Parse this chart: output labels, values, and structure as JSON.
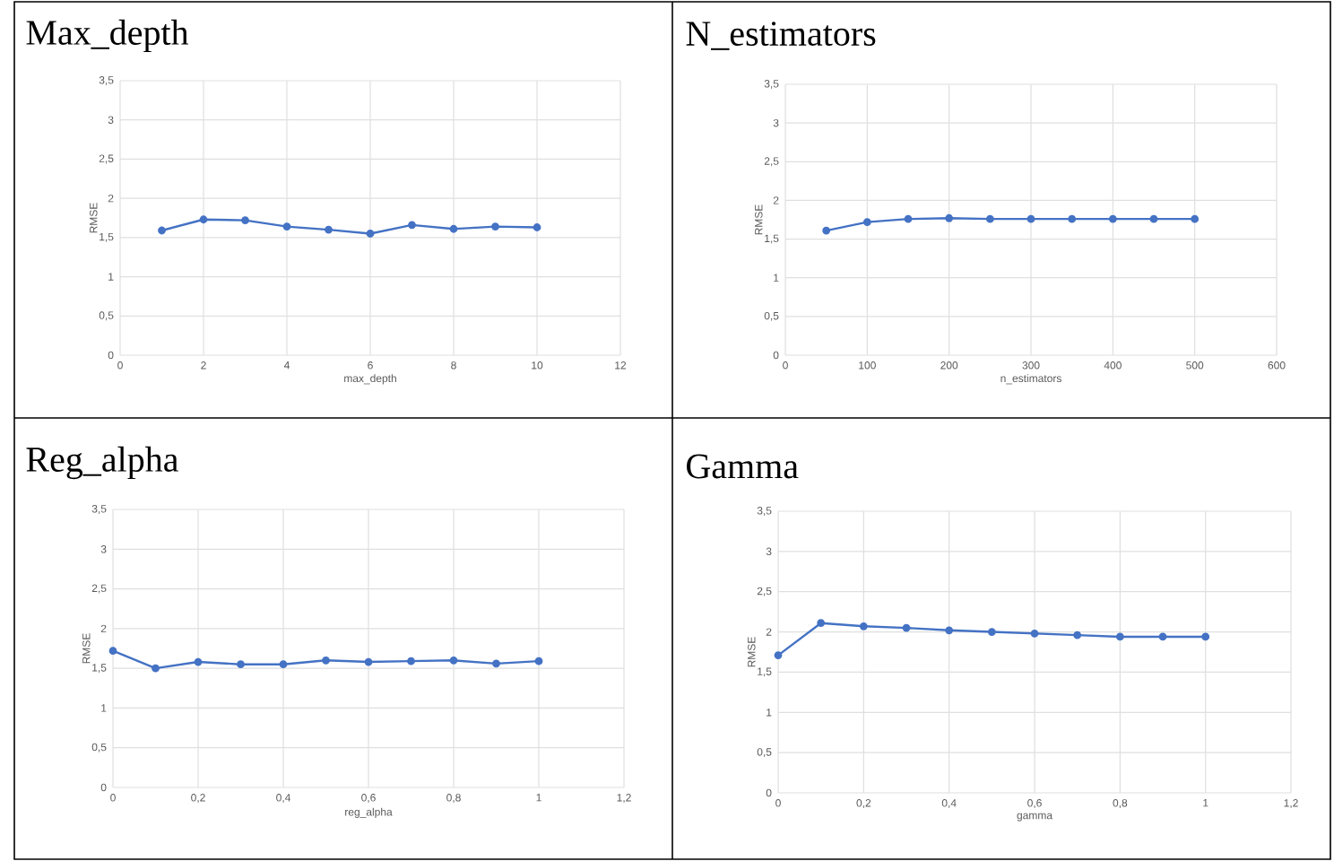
{
  "chart_data": [
    {
      "type": "line",
      "title": "Max_depth",
      "xlabel": "max_depth",
      "ylabel": "RMSE",
      "x": [
        1,
        2,
        3,
        4,
        5,
        6,
        7,
        8,
        9,
        10
      ],
      "series": [
        {
          "color": "#4472c4",
          "values": [
            1.59,
            1.73,
            1.72,
            1.64,
            1.6,
            1.55,
            1.66,
            1.61,
            1.64,
            1.63
          ]
        }
      ],
      "xlim": [
        0,
        12
      ],
      "xticks": [
        0,
        2,
        4,
        6,
        8,
        10,
        12
      ],
      "ylim": [
        0,
        3.5
      ],
      "yticks": [
        0,
        {
          "value": 0.5,
          "label": "0,5"
        },
        1,
        {
          "value": 1.5,
          "label": "1,5"
        },
        2,
        {
          "value": 2.5,
          "label": "2,5"
        },
        3,
        {
          "value": 3.5,
          "label": "3,5"
        }
      ],
      "grid": true,
      "marker": "circle",
      "line_style": "solid"
    },
    {
      "type": "line",
      "title": "N_estimators",
      "xlabel": "n_estimators",
      "ylabel": "RMSE",
      "x": [
        50,
        100,
        150,
        200,
        250,
        300,
        350,
        400,
        450,
        500
      ],
      "series": [
        {
          "color": "#4472c4",
          "values": [
            1.61,
            1.72,
            1.76,
            1.77,
            1.76,
            1.76,
            1.76,
            1.76,
            1.76,
            1.76
          ]
        }
      ],
      "xlim": [
        0,
        600
      ],
      "xticks": [
        0,
        100,
        200,
        300,
        400,
        500,
        600
      ],
      "ylim": [
        0,
        3.5
      ],
      "yticks": [
        0,
        {
          "value": 0.5,
          "label": "0,5"
        },
        1,
        {
          "value": 1.5,
          "label": "1,5"
        },
        2,
        {
          "value": 2.5,
          "label": "2,5"
        },
        3,
        {
          "value": 3.5,
          "label": "3,5"
        }
      ],
      "grid": true,
      "marker": "circle",
      "line_style": "solid"
    },
    {
      "type": "line",
      "title": "Reg_alpha",
      "xlabel": "reg_alpha",
      "ylabel": "RMSE",
      "x": [
        0,
        0.1,
        0.2,
        0.3,
        0.4,
        0.5,
        0.6,
        0.7,
        0.8,
        0.9,
        1
      ],
      "series": [
        {
          "color": "#4472c4",
          "values": [
            1.72,
            1.5,
            1.58,
            1.55,
            1.55,
            1.6,
            1.58,
            1.59,
            1.6,
            1.56,
            1.59
          ]
        }
      ],
      "xlim": [
        0,
        1.2
      ],
      "xticks": [
        0,
        {
          "value": 0.2,
          "label": "0,2"
        },
        {
          "value": 0.4,
          "label": "0,4"
        },
        {
          "value": 0.6,
          "label": "0,6"
        },
        {
          "value": 0.8,
          "label": "0,8"
        },
        1,
        {
          "value": 1.2,
          "label": "1,2"
        }
      ],
      "ylim": [
        0,
        3.5
      ],
      "yticks": [
        0,
        {
          "value": 0.5,
          "label": "0,5"
        },
        1,
        {
          "value": 1.5,
          "label": "1,5"
        },
        2,
        {
          "value": 2.5,
          "label": "2,5"
        },
        3,
        {
          "value": 3.5,
          "label": "3,5"
        }
      ],
      "grid": true,
      "marker": "circle",
      "line_style": "solid"
    },
    {
      "type": "line",
      "title": "Gamma",
      "xlabel": "gamma",
      "ylabel": "RMSE",
      "x": [
        0,
        0.1,
        0.2,
        0.3,
        0.4,
        0.5,
        0.6,
        0.7,
        0.8,
        0.9,
        1
      ],
      "series": [
        {
          "color": "#4472c4",
          "values": [
            1.71,
            2.11,
            2.07,
            2.05,
            2.02,
            2.0,
            1.98,
            1.96,
            1.94,
            1.94,
            1.94
          ]
        }
      ],
      "xlim": [
        0,
        1.2
      ],
      "xticks": [
        0,
        {
          "value": 0.2,
          "label": "0,2"
        },
        {
          "value": 0.4,
          "label": "0,4"
        },
        {
          "value": 0.6,
          "label": "0,6"
        },
        {
          "value": 0.8,
          "label": "0,8"
        },
        1,
        {
          "value": 1.2,
          "label": "1,2"
        }
      ],
      "ylim": [
        0,
        3.5
      ],
      "yticks": [
        0,
        {
          "value": 0.5,
          "label": "0,5"
        },
        1,
        {
          "value": 1.5,
          "label": "1,5"
        },
        2,
        {
          "value": 2.5,
          "label": "2,5"
        },
        3,
        {
          "value": 3.5,
          "label": "3,5"
        }
      ],
      "grid": true,
      "marker": "circle",
      "line_style": "solid"
    }
  ]
}
